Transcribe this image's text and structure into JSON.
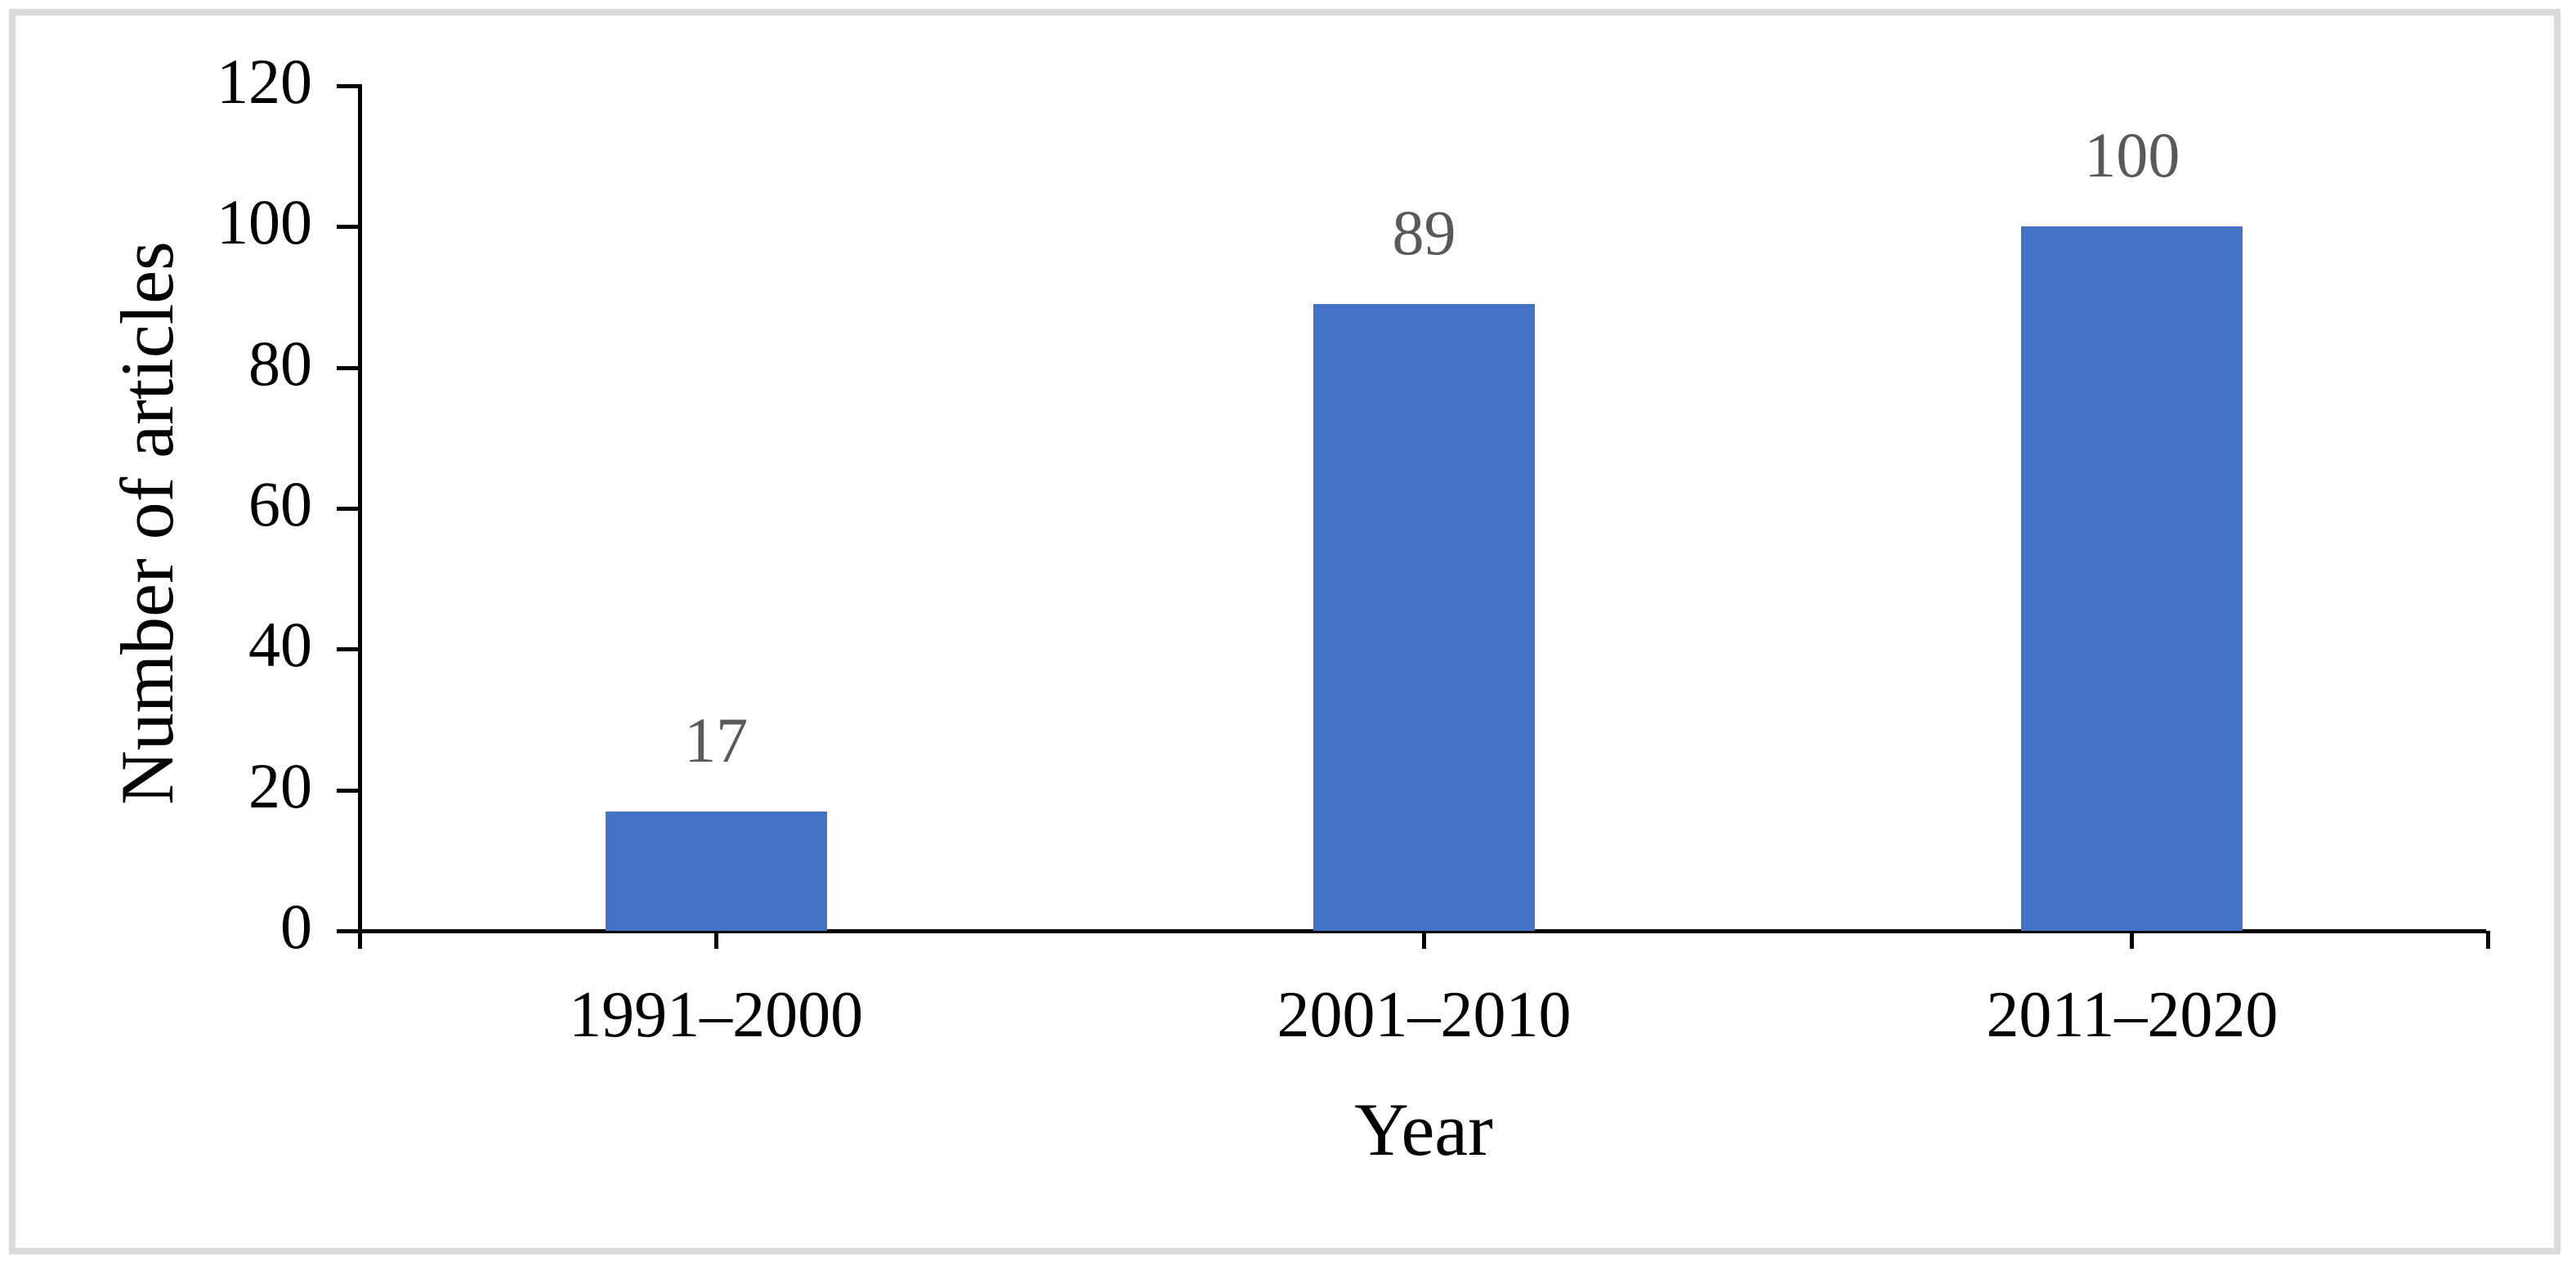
{
  "chart_data": {
    "type": "bar",
    "categories": [
      "1991–2000",
      "2001–2010",
      "2011–2020"
    ],
    "values": [
      17,
      89,
      100
    ],
    "title": "",
    "xlabel": "Year",
    "ylabel": "Number of articles",
    "ylim": [
      0,
      120
    ],
    "yticks": [
      0,
      20,
      40,
      60,
      80,
      100,
      120
    ],
    "grid": false,
    "legend": "none",
    "bar_color": "#4472C4",
    "data_label_color": "#595959",
    "axis_color": "#000000",
    "figure_border_color": "#DBDBDB"
  }
}
